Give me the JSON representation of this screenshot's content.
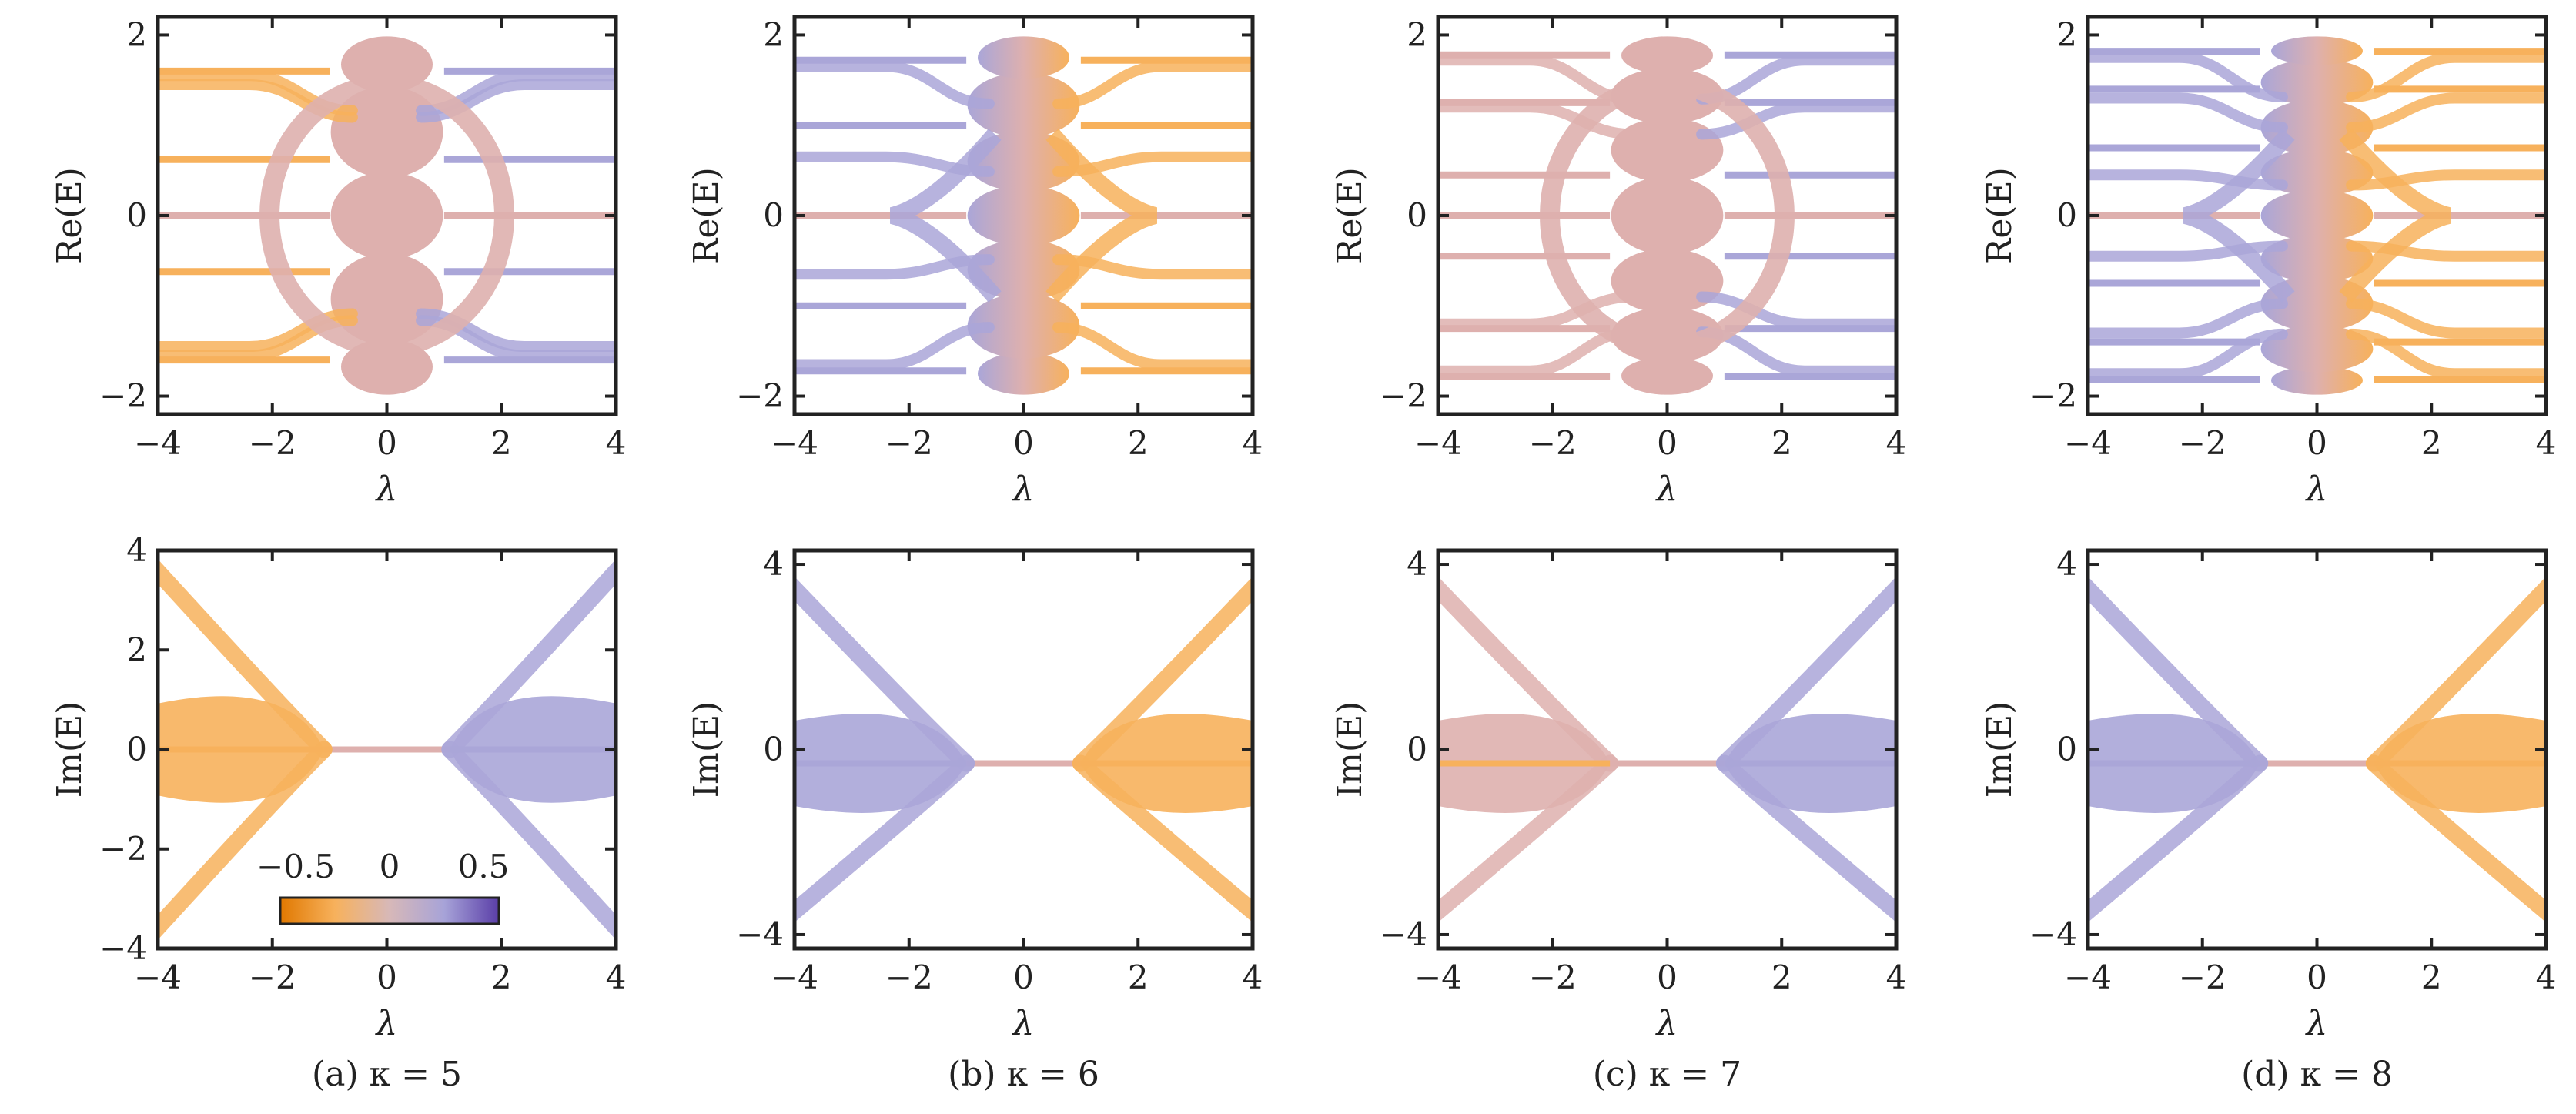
{
  "figure": {
    "captions": [
      "(a) κ = 5",
      "(b) κ = 6",
      "(c) κ = 7",
      "(d) κ = 8"
    ],
    "colorbar": {
      "tick_labels": [
        "−0.5",
        "0",
        "0.5"
      ],
      "range": [
        -0.5,
        0.5
      ],
      "colors": [
        "#e07800",
        "#f7b15c",
        "#d7b8b8",
        "#a7a3d8",
        "#5a3ea8"
      ]
    },
    "palette": {
      "orange": "#f7b15c",
      "rose": "#deb0ae",
      "lavender": "#aaa6d8"
    }
  },
  "chart_data": [
    {
      "id": "a-re",
      "type": "scatter",
      "panel": "a",
      "row": "top",
      "xlabel": "λ",
      "ylabel": "Re(E)",
      "xlim": [
        -4,
        4
      ],
      "ylim": [
        -2.2,
        2.2
      ],
      "xticks": [
        -4,
        -2,
        0,
        2,
        4
      ],
      "yticks": [
        -2,
        0,
        2
      ],
      "xtick_labels": [
        "−4",
        "−2",
        "0",
        "2",
        "4"
      ],
      "ytick_labels": [
        "−2",
        "0",
        "2"
      ],
      "skew": 0,
      "bubble_edges": [
        -1.95,
        -1.4,
        -0.45,
        0.45,
        1.4,
        1.95
      ],
      "flat_bands": [
        1.6,
        0.62,
        0,
        -0.62,
        -1.6
      ],
      "band_tails": [
        1.55,
        1.45,
        -1.45,
        -1.55
      ],
      "ring": true,
      "series": []
    },
    {
      "id": "b-re",
      "type": "scatter",
      "panel": "b",
      "row": "top",
      "xlabel": "λ",
      "ylabel": "Re(E)",
      "xlim": [
        -4,
        4
      ],
      "ylim": [
        -2.2,
        2.2
      ],
      "xticks": [
        -4,
        -2,
        0,
        2,
        4
      ],
      "yticks": [
        -2,
        0,
        2
      ],
      "xtick_labels": [
        "−4",
        "−2",
        "0",
        "2",
        "4"
      ],
      "ytick_labels": [
        "−2",
        "0",
        "2"
      ],
      "skew": 1,
      "bubble_edges": [
        -1.95,
        -1.55,
        -0.9,
        -0.3,
        0.3,
        0.9,
        1.55,
        1.95
      ],
      "flat_bands": [
        1.72,
        1.0,
        0,
        -1.0,
        -1.72
      ],
      "band_tails": [
        1.65,
        0.65,
        -0.65,
        -1.65
      ],
      "ring": false,
      "series": []
    },
    {
      "id": "c-re",
      "type": "scatter",
      "panel": "c",
      "row": "top",
      "xlabel": "λ",
      "ylabel": "Re(E)",
      "xlim": [
        -4,
        4
      ],
      "ylim": [
        -2.2,
        2.2
      ],
      "xticks": [
        -4,
        -2,
        0,
        2,
        4
      ],
      "yticks": [
        -2,
        0,
        2
      ],
      "xtick_labels": [
        "−4",
        "−2",
        "0",
        "2",
        "4"
      ],
      "ytick_labels": [
        "−2",
        "0",
        "2"
      ],
      "skew": 0.15,
      "bubble_edges": [
        -1.95,
        -1.6,
        -1.05,
        -0.4,
        0.4,
        1.05,
        1.6,
        1.95
      ],
      "flat_bands": [
        1.78,
        1.25,
        0.45,
        0,
        -0.45,
        -1.25,
        -1.78
      ],
      "band_tails": [
        1.72,
        1.2,
        -1.2,
        -1.72
      ],
      "ring": true,
      "series": []
    },
    {
      "id": "d-re",
      "type": "scatter",
      "panel": "d",
      "row": "top",
      "xlabel": "λ",
      "ylabel": "Re(E)",
      "xlim": [
        -4,
        4
      ],
      "ylim": [
        -2.2,
        2.2
      ],
      "xticks": [
        -4,
        -2,
        0,
        2,
        4
      ],
      "yticks": [
        -2,
        0,
        2
      ],
      "xtick_labels": [
        "−4",
        "−2",
        "0",
        "2",
        "4"
      ],
      "ytick_labels": [
        "−2",
        "0",
        "2"
      ],
      "skew": 1,
      "bubble_edges": [
        -1.95,
        -1.7,
        -1.25,
        -0.7,
        -0.25,
        0.25,
        0.7,
        1.25,
        1.7,
        1.95
      ],
      "flat_bands": [
        1.82,
        1.4,
        0.75,
        0,
        -0.75,
        -1.4,
        -1.82
      ],
      "band_tails": [
        1.75,
        1.3,
        0.45,
        -0.45,
        -1.3,
        -1.75
      ],
      "ring": false,
      "series": []
    },
    {
      "id": "a-im",
      "type": "scatter",
      "panel": "a",
      "row": "bottom",
      "xlabel": "λ",
      "ylabel": "Im(E)",
      "xlim": [
        -4,
        4
      ],
      "ylim": [
        -4,
        4
      ],
      "xticks": [
        -4,
        -2,
        0,
        2,
        4
      ],
      "yticks": [
        -4,
        -2,
        0,
        2,
        4
      ],
      "xtick_labels": [
        "−4",
        "−2",
        "0",
        "2",
        "4"
      ],
      "ytick_labels": [
        "−4",
        "−2",
        "0",
        "2",
        "4"
      ],
      "skew": 0,
      "lambda_c": 1.1,
      "edge_value": 3.7,
      "baseline": 0,
      "series": []
    },
    {
      "id": "b-im",
      "type": "scatter",
      "panel": "b",
      "row": "bottom",
      "xlabel": "λ",
      "ylabel": "Im(E)",
      "xlim": [
        -4,
        4
      ],
      "ylim": [
        -4.3,
        4.3
      ],
      "xticks": [
        -4,
        -2,
        0,
        2,
        4
      ],
      "yticks": [
        -4,
        0,
        4
      ],
      "xtick_labels": [
        "−4",
        "−2",
        "0",
        "2",
        "4"
      ],
      "ytick_labels": [
        "−4",
        "0",
        "4"
      ],
      "skew": 1,
      "lambda_c": 1.0,
      "edge_value": 3.6,
      "baseline": -0.3,
      "series": []
    },
    {
      "id": "c-im",
      "type": "scatter",
      "panel": "c",
      "row": "bottom",
      "xlabel": "λ",
      "ylabel": "Im(E)",
      "xlim": [
        -4,
        4
      ],
      "ylim": [
        -4.3,
        4.3
      ],
      "xticks": [
        -4,
        -2,
        0,
        2,
        4
      ],
      "yticks": [
        -4,
        0,
        4
      ],
      "xtick_labels": [
        "−4",
        "−2",
        "0",
        "2",
        "4"
      ],
      "ytick_labels": [
        "−4",
        "0",
        "4"
      ],
      "skew": 0.15,
      "lambda_c": 1.0,
      "edge_value": 3.6,
      "baseline": -0.3,
      "series": []
    },
    {
      "id": "d-im",
      "type": "scatter",
      "panel": "d",
      "row": "bottom",
      "xlabel": "λ",
      "ylabel": "Im(E)",
      "xlim": [
        -4,
        4
      ],
      "ylim": [
        -4.3,
        4.3
      ],
      "xticks": [
        -4,
        -2,
        0,
        2,
        4
      ],
      "yticks": [
        -4,
        0,
        4
      ],
      "xtick_labels": [
        "−4",
        "−2",
        "0",
        "2",
        "4"
      ],
      "ytick_labels": [
        "−4",
        "0",
        "4"
      ],
      "skew": 1,
      "lambda_c": 1.0,
      "edge_value": 3.6,
      "baseline": -0.3,
      "series": []
    }
  ]
}
